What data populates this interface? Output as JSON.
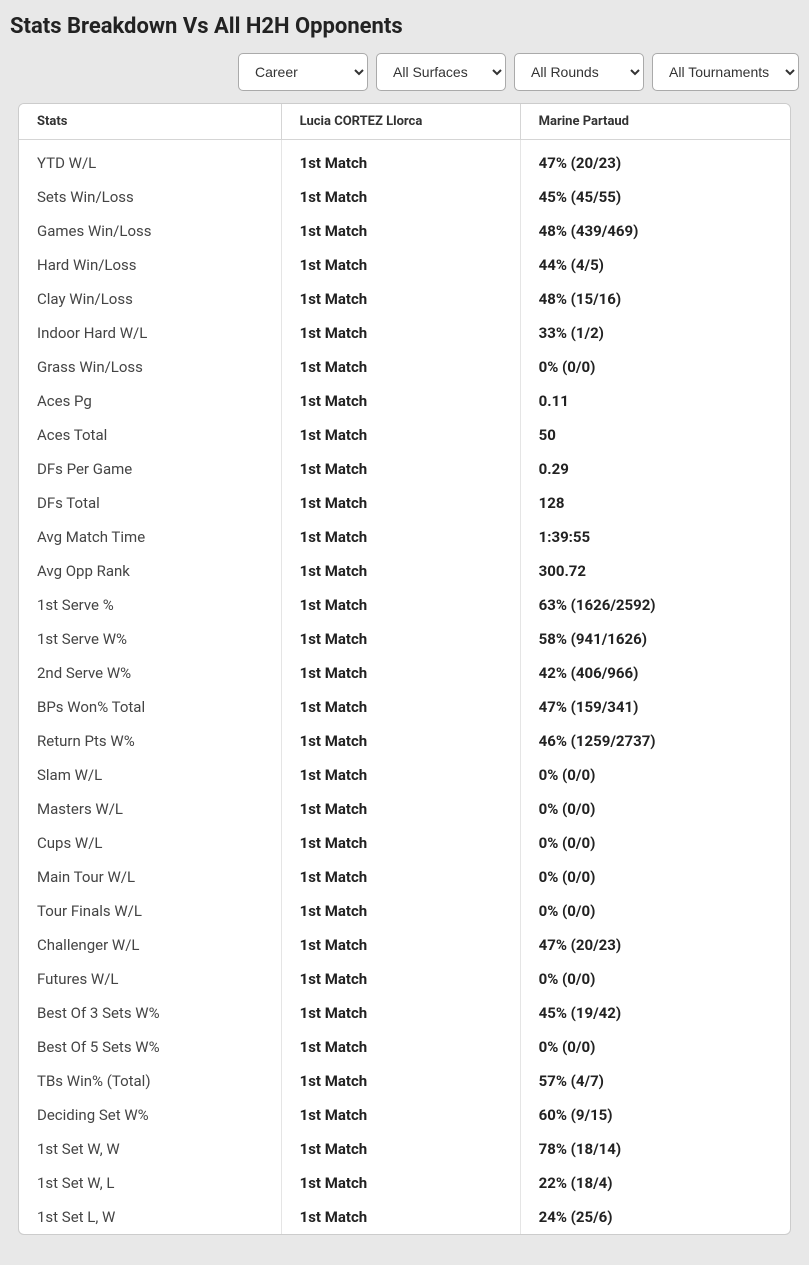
{
  "title": "Stats Breakdown Vs All H2H Opponents",
  "filters": {
    "timeframe": "Career",
    "surface": "All Surfaces",
    "round": "All Rounds",
    "tournament": "All Tournaments"
  },
  "table": {
    "headers": {
      "stats": "Stats",
      "player1": "Lucia CORTEZ Llorca",
      "player2": "Marine Partaud"
    },
    "rows": [
      {
        "stat": "YTD W/L",
        "p1": "1st Match",
        "p2": "47% (20/23)"
      },
      {
        "stat": "Sets Win/Loss",
        "p1": "1st Match",
        "p2": "45% (45/55)"
      },
      {
        "stat": "Games Win/Loss",
        "p1": "1st Match",
        "p2": "48% (439/469)"
      },
      {
        "stat": "Hard Win/Loss",
        "p1": "1st Match",
        "p2": "44% (4/5)"
      },
      {
        "stat": "Clay Win/Loss",
        "p1": "1st Match",
        "p2": "48% (15/16)"
      },
      {
        "stat": "Indoor Hard W/L",
        "p1": "1st Match",
        "p2": "33% (1/2)"
      },
      {
        "stat": "Grass Win/Loss",
        "p1": "1st Match",
        "p2": "0% (0/0)"
      },
      {
        "stat": "Aces Pg",
        "p1": "1st Match",
        "p2": "0.11"
      },
      {
        "stat": "Aces Total",
        "p1": "1st Match",
        "p2": "50"
      },
      {
        "stat": "DFs Per Game",
        "p1": "1st Match",
        "p2": "0.29"
      },
      {
        "stat": "DFs Total",
        "p1": "1st Match",
        "p2": "128"
      },
      {
        "stat": "Avg Match Time",
        "p1": "1st Match",
        "p2": "1:39:55"
      },
      {
        "stat": "Avg Opp Rank",
        "p1": "1st Match",
        "p2": "300.72"
      },
      {
        "stat": "1st Serve %",
        "p1": "1st Match",
        "p2": "63% (1626/2592)"
      },
      {
        "stat": "1st Serve W%",
        "p1": "1st Match",
        "p2": "58% (941/1626)"
      },
      {
        "stat": "2nd Serve W%",
        "p1": "1st Match",
        "p2": "42% (406/966)"
      },
      {
        "stat": "BPs Won% Total",
        "p1": "1st Match",
        "p2": "47% (159/341)"
      },
      {
        "stat": "Return Pts W%",
        "p1": "1st Match",
        "p2": "46% (1259/2737)"
      },
      {
        "stat": "Slam W/L",
        "p1": "1st Match",
        "p2": "0% (0/0)"
      },
      {
        "stat": "Masters W/L",
        "p1": "1st Match",
        "p2": "0% (0/0)"
      },
      {
        "stat": "Cups W/L",
        "p1": "1st Match",
        "p2": "0% (0/0)"
      },
      {
        "stat": "Main Tour W/L",
        "p1": "1st Match",
        "p2": "0% (0/0)"
      },
      {
        "stat": "Tour Finals W/L",
        "p1": "1st Match",
        "p2": "0% (0/0)"
      },
      {
        "stat": "Challenger W/L",
        "p1": "1st Match",
        "p2": "47% (20/23)"
      },
      {
        "stat": "Futures W/L",
        "p1": "1st Match",
        "p2": "0% (0/0)"
      },
      {
        "stat": "Best Of 3 Sets W%",
        "p1": "1st Match",
        "p2": "45% (19/42)"
      },
      {
        "stat": "Best Of 5 Sets W%",
        "p1": "1st Match",
        "p2": "0% (0/0)"
      },
      {
        "stat": "TBs Win% (Total)",
        "p1": "1st Match",
        "p2": "57% (4/7)"
      },
      {
        "stat": "Deciding Set W%",
        "p1": "1st Match",
        "p2": "60% (9/15)"
      },
      {
        "stat": "1st Set W, W",
        "p1": "1st Match",
        "p2": "78% (18/14)"
      },
      {
        "stat": "1st Set W, L",
        "p1": "1st Match",
        "p2": "22% (18/4)"
      },
      {
        "stat": "1st Set L, W",
        "p1": "1st Match",
        "p2": "24% (25/6)"
      }
    ]
  }
}
